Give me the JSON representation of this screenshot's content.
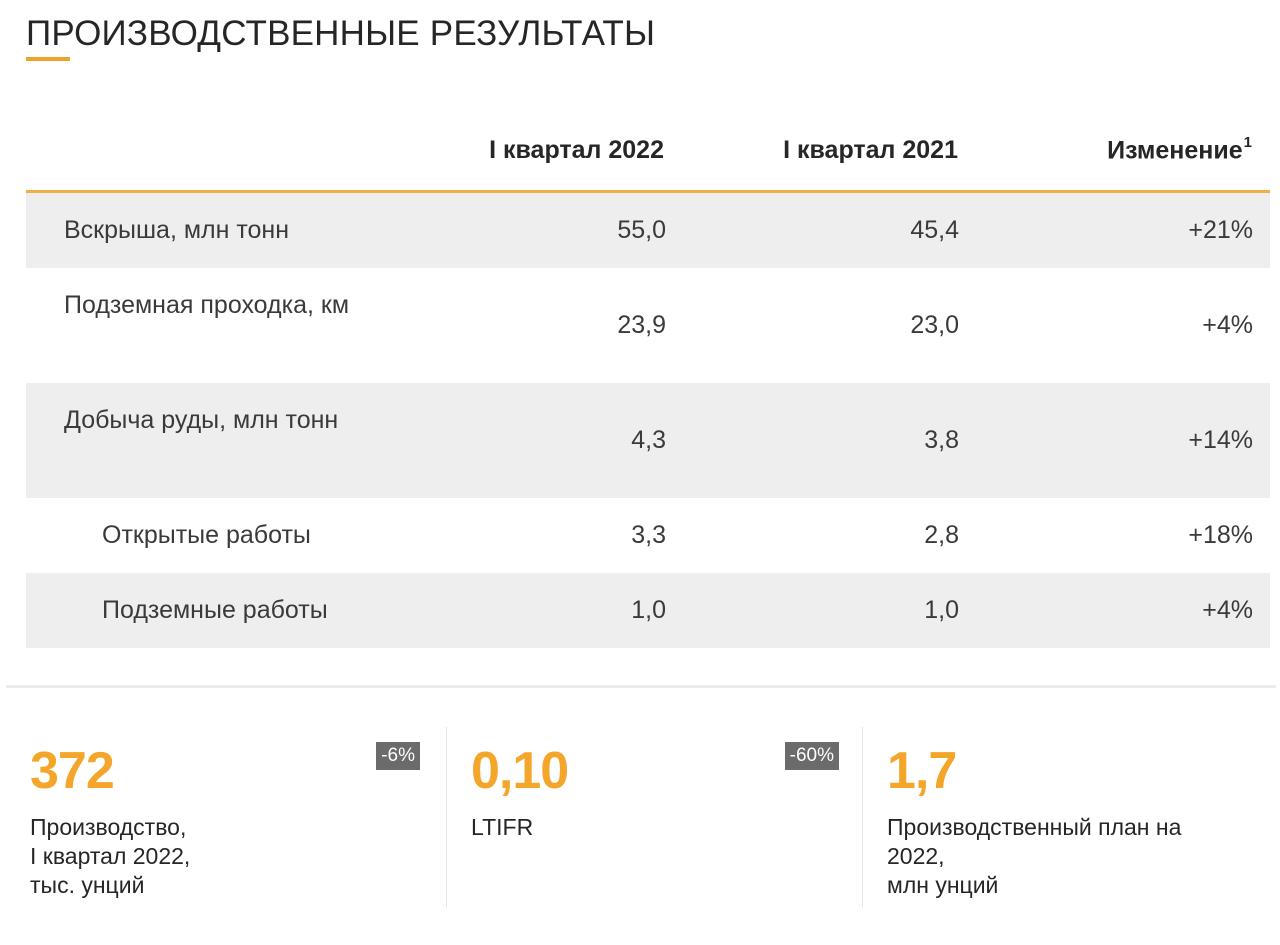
{
  "title": "ПРОИЗВОДСТВЕННЫЕ РЕЗУЛЬТАТЫ",
  "colors": {
    "accent": "#f4a62a",
    "row_shade": "#eeeeee",
    "badge": "#6b6b6b"
  },
  "table": {
    "headers": [
      "I квартал 2022",
      "I квартал 2021",
      "Изменение",
      "1"
    ],
    "rows": [
      {
        "label": "Вскрыша, млн тонн",
        "q1_2022": "55,0",
        "q1_2021": "45,4",
        "change": "+21%"
      },
      {
        "label": "Подземная проходка, км",
        "q1_2022": "23,9",
        "q1_2021": "23,0",
        "change": "+4%"
      },
      {
        "label": "Добыча руды, млн тонн",
        "q1_2022": "4,3",
        "q1_2021": "3,8",
        "change": "+14%"
      },
      {
        "label": "Открытые работы",
        "q1_2022": "3,3",
        "q1_2021": "2,8",
        "change": "+18%"
      },
      {
        "label": "Подземные работы",
        "q1_2022": "1,0",
        "q1_2021": "1,0",
        "change": "+4%"
      }
    ]
  },
  "kpis": [
    {
      "value": "372",
      "badge": "-6%",
      "description": "Производство,\nI квартал 2022,\nтыс. унций"
    },
    {
      "value": "0,10",
      "badge": "-60%",
      "description": "LTIFR"
    },
    {
      "value": "1,7",
      "badge": "",
      "description": "Производственный план на\n2022,\nмлн унций"
    }
  ]
}
